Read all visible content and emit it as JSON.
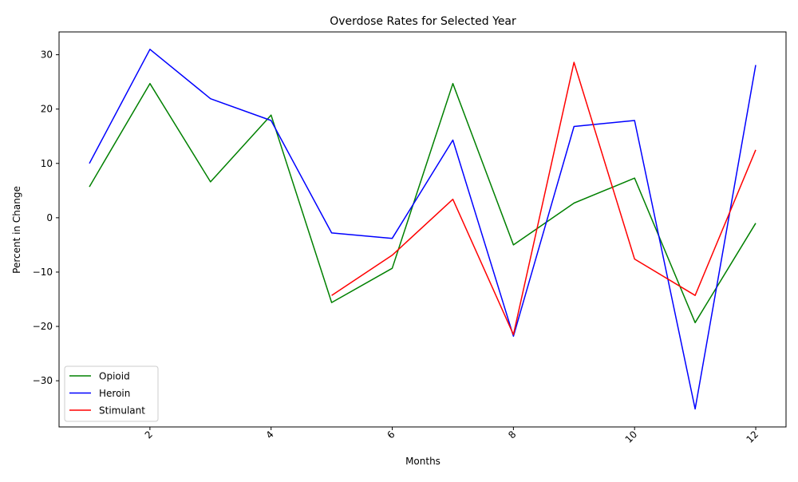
{
  "chart_data": {
    "type": "line",
    "title": "Overdose Rates for Selected Year",
    "xlabel": "Months",
    "ylabel": "Percent in Change",
    "xlim": [
      0.5,
      12.5
    ],
    "ylim": [
      -38.5,
      34.2
    ],
    "xticks": [
      2,
      4,
      6,
      8,
      10,
      12
    ],
    "yticks": [
      -30,
      -20,
      -10,
      0,
      10,
      20,
      30
    ],
    "grid": false,
    "legend_position": "lower-left",
    "x": [
      1,
      2,
      3,
      4,
      5,
      6,
      7,
      8,
      9,
      10,
      11,
      12
    ],
    "series": [
      {
        "name": "Opioid",
        "color": "#008000",
        "values": [
          5.7,
          24.7,
          6.6,
          18.9,
          -15.6,
          -9.3,
          24.7,
          -5.0,
          2.7,
          7.3,
          -19.3,
          -1.0
        ]
      },
      {
        "name": "Heroin",
        "color": "#0000ff",
        "values": [
          10.0,
          31.0,
          21.9,
          17.9,
          -2.8,
          -3.8,
          14.3,
          -21.8,
          16.8,
          17.9,
          -35.2,
          28.1
        ]
      },
      {
        "name": "Stimulant",
        "color": "#ff0000",
        "values": [
          null,
          null,
          null,
          null,
          -14.3,
          -6.9,
          3.4,
          -21.5,
          28.6,
          -7.6,
          -14.3,
          12.5
        ]
      }
    ]
  }
}
